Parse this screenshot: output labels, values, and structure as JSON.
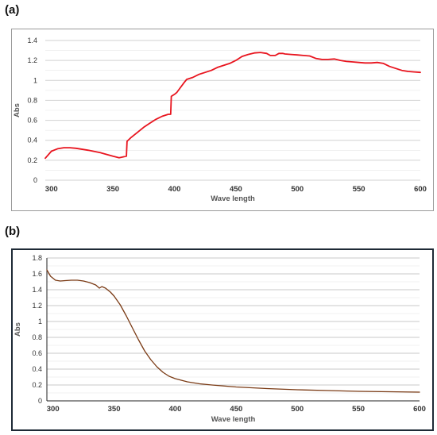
{
  "panels": [
    {
      "label": "(a)"
    },
    {
      "label": "(b)"
    }
  ],
  "chart_data": [
    {
      "type": "line",
      "title": "",
      "xlabel": "Wave length",
      "ylabel": "Abs",
      "xlim": [
        295,
        600
      ],
      "ylim": [
        0,
        1.4
      ],
      "xticks": [
        "300",
        "350",
        "400",
        "450",
        "500",
        "550",
        "600"
      ],
      "xtick_values": [
        300,
        350,
        400,
        450,
        500,
        550,
        600
      ],
      "yticks": [
        "0",
        "0.2",
        "0.4",
        "0.6",
        "0.8",
        "1",
        "1.2",
        "1.4"
      ],
      "ytick_values": [
        0,
        0.2,
        0.4,
        0.6,
        0.8,
        1.0,
        1.2,
        1.4
      ],
      "grid": true,
      "legend": "none",
      "line_color": "#e8141e",
      "border_color": "#9a9a9a",
      "series": [
        {
          "x": [
            295,
            300,
            305,
            310,
            315,
            320,
            330,
            340,
            350,
            355,
            357,
            361,
            361.5,
            365,
            370,
            375,
            380,
            385,
            390,
            395,
            397,
            397.5,
            400,
            402,
            405,
            408,
            410,
            415,
            420,
            425,
            430,
            435,
            440,
            445,
            450,
            455,
            460,
            465,
            470,
            475,
            478,
            482,
            485,
            488,
            490,
            495,
            500,
            505,
            510,
            515,
            520,
            525,
            530,
            535,
            540,
            545,
            550,
            555,
            560,
            565,
            570,
            575,
            580,
            585,
            590,
            595,
            600
          ],
          "y": [
            0.22,
            0.29,
            0.315,
            0.325,
            0.325,
            0.32,
            0.3,
            0.275,
            0.24,
            0.225,
            0.23,
            0.24,
            0.39,
            0.43,
            0.48,
            0.53,
            0.57,
            0.61,
            0.64,
            0.66,
            0.66,
            0.84,
            0.86,
            0.88,
            0.93,
            0.98,
            1.01,
            1.03,
            1.06,
            1.08,
            1.1,
            1.13,
            1.15,
            1.17,
            1.2,
            1.24,
            1.26,
            1.275,
            1.28,
            1.27,
            1.25,
            1.25,
            1.27,
            1.27,
            1.265,
            1.26,
            1.255,
            1.25,
            1.245,
            1.22,
            1.21,
            1.21,
            1.215,
            1.2,
            1.19,
            1.185,
            1.18,
            1.175,
            1.175,
            1.18,
            1.17,
            1.14,
            1.12,
            1.1,
            1.09,
            1.085,
            1.08
          ]
        }
      ]
    },
    {
      "type": "line",
      "title": "",
      "xlabel": "Wave length",
      "ylabel": "Abs",
      "xlim": [
        295,
        600
      ],
      "ylim": [
        0,
        1.8
      ],
      "xticks": [
        "300",
        "350",
        "400",
        "450",
        "500",
        "550",
        "600"
      ],
      "xtick_values": [
        300,
        350,
        400,
        450,
        500,
        550,
        600
      ],
      "yticks": [
        "0",
        "0.2",
        "0.4",
        "0.6",
        "0.8",
        "1",
        "1.2",
        "1.4",
        "1.6",
        "1.8"
      ],
      "ytick_values": [
        0,
        0.2,
        0.4,
        0.6,
        0.8,
        1.0,
        1.2,
        1.4,
        1.6,
        1.8
      ],
      "grid": true,
      "legend": "none",
      "line_color": "#7a3a14",
      "border_color": "#1e2a36",
      "series": [
        {
          "x": [
            295,
            298,
            302,
            306,
            310,
            315,
            320,
            325,
            330,
            335,
            338,
            340,
            343,
            347,
            350,
            355,
            360,
            365,
            370,
            375,
            380,
            385,
            390,
            395,
            400,
            410,
            420,
            430,
            450,
            475,
            500,
            525,
            550,
            575,
            600
          ],
          "y": [
            1.65,
            1.57,
            1.52,
            1.51,
            1.515,
            1.52,
            1.52,
            1.51,
            1.49,
            1.46,
            1.42,
            1.44,
            1.42,
            1.37,
            1.32,
            1.21,
            1.07,
            0.92,
            0.77,
            0.63,
            0.52,
            0.43,
            0.36,
            0.31,
            0.28,
            0.24,
            0.215,
            0.2,
            0.175,
            0.155,
            0.14,
            0.13,
            0.12,
            0.115,
            0.11
          ]
        }
      ]
    }
  ]
}
